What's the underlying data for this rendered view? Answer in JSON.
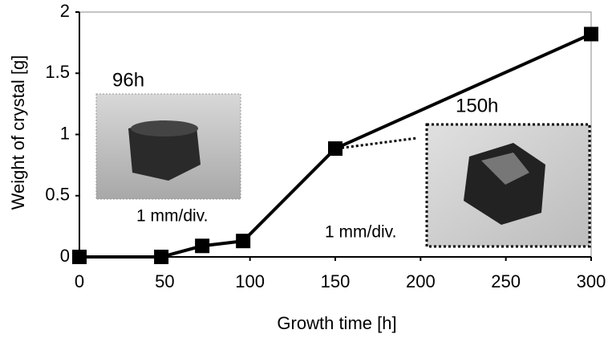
{
  "chart_data": {
    "type": "line",
    "x_label": "Growth time [h]",
    "y_label": "Weight of crystal [g]",
    "x": [
      0,
      48,
      72,
      96,
      150,
      300
    ],
    "series": [
      {
        "color": "#000000",
        "values": [
          0,
          0,
          0.09,
          0.13,
          0.885,
          1.82
        ]
      }
    ],
    "xlim": [
      0,
      300
    ],
    "xticks": [
      0,
      50,
      100,
      150,
      200,
      250,
      300
    ],
    "ylim": [
      0,
      2
    ],
    "yticks": [
      0,
      0.5,
      1,
      1.5,
      2
    ],
    "annotations": [
      "96h",
      "1 mm/div.",
      "150h",
      "1 mm/div."
    ]
  }
}
